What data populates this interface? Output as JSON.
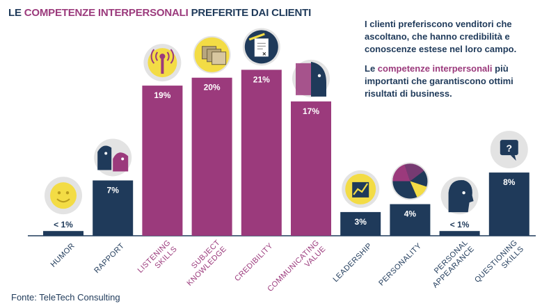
{
  "title": {
    "prefix": "LE",
    "highlight": "COMPETENZE INTERPERSONALI",
    "suffix": "PREFERITE DAI CLIENTI"
  },
  "intro": {
    "paragraph1": "I clienti preferiscono venditori che ascoltano, che hanno credibilità e conoscenze estese nel loro campo.",
    "paragraph2_prefix": "Le",
    "paragraph2_highlight": "competenze interpersonali",
    "paragraph2_suffix": "più importanti che garantiscono ottimi risultati di business."
  },
  "source": "Fonte: TeleTech  Consulting",
  "colors": {
    "navy": "#1f3a5a",
    "purple": "#9b3a7c",
    "icon_bg": "#e3e3e3",
    "yellow": "#f3dc45"
  },
  "chart_data": {
    "type": "bar",
    "ylim": [
      0,
      22
    ],
    "categories": [
      {
        "lines": [
          "HUMOR"
        ],
        "value": 0.6,
        "label": "< 1%",
        "color": "navy",
        "icon": "smiley-icon"
      },
      {
        "lines": [
          "RAPPORT"
        ],
        "value": 7,
        "label": "7%",
        "color": "navy",
        "icon": "faces-icon"
      },
      {
        "lines": [
          "LISTENING",
          "SKILLS"
        ],
        "value": 19,
        "label": "19%",
        "color": "purple",
        "icon": "antenna-icon"
      },
      {
        "lines": [
          "SUBJECT",
          "KNOWLEDGE"
        ],
        "value": 20,
        "label": "20%",
        "color": "purple",
        "icon": "folders-icon"
      },
      {
        "lines": [
          "CREDIBILITY"
        ],
        "value": 21,
        "label": "21%",
        "color": "purple",
        "icon": "contract-icon"
      },
      {
        "lines": [
          "COMMUNICATING",
          "VALUE"
        ],
        "value": 17,
        "label": "17%",
        "color": "purple",
        "icon": "talking-heads-icon"
      },
      {
        "lines": [
          "LEADERSHIP"
        ],
        "value": 3,
        "label": "3%",
        "color": "navy",
        "icon": "growth-chart-icon"
      },
      {
        "lines": [
          "PERSONALITY"
        ],
        "value": 4,
        "label": "4%",
        "color": "navy",
        "icon": "pie-icon"
      },
      {
        "lines": [
          "PERSONAL",
          "APPEARANCE"
        ],
        "value": 0.6,
        "label": "< 1%",
        "color": "navy",
        "icon": "head-profile-icon"
      },
      {
        "lines": [
          "QUESTIONING",
          "SKILLS"
        ],
        "value": 8,
        "label": "8%",
        "color": "navy",
        "icon": "question-bubble-icon"
      }
    ]
  }
}
